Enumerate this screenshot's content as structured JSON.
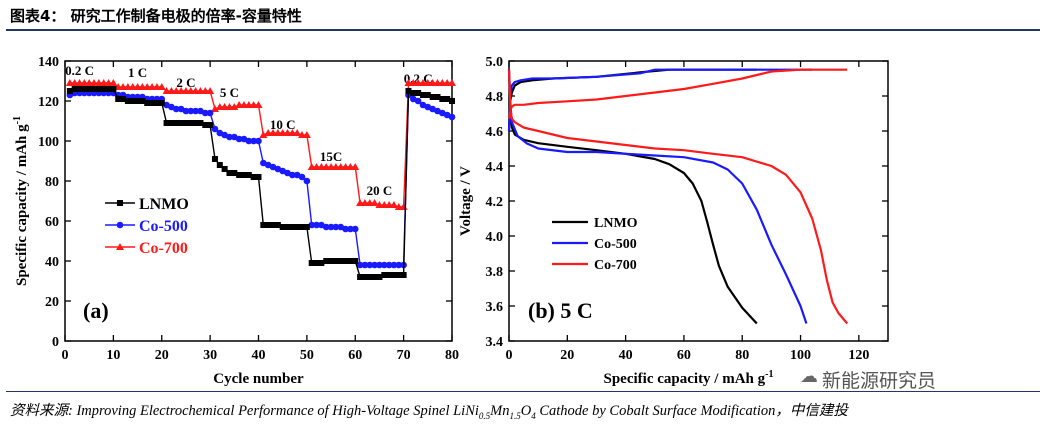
{
  "header": {
    "title": "图表4：  研究工作制备电极的倍率-容量特性"
  },
  "footer": {
    "source_prefix": "资料来源: ",
    "source_title": "Improving Electrochemical Performance of High-Voltage Spinel LiNi",
    "sub1": "0.5",
    "mn": "Mn",
    "sub2": "1.5",
    "tail": "O",
    "sub3": "4",
    "source_rest": " Cathode by Cobalt Surface Modification，中信建投",
    "watermark": "新能源研究员",
    "watermark_icon": "wechat-icon"
  },
  "colors": {
    "LNMO": "#000000",
    "Co-500": "#1a1aff",
    "Co-700": "#ff1a1a",
    "rule": "#1f3864"
  },
  "chart_data": [
    {
      "type": "line",
      "panel_label": "(a)",
      "xlabel": "Cycle number",
      "ylabel": "Specific capacity / mAh g",
      "ylabel_sup": "-1",
      "xlim": [
        0,
        80
      ],
      "ylim": [
        0,
        140
      ],
      "xticks": [
        0,
        10,
        20,
        30,
        40,
        50,
        60,
        70,
        80
      ],
      "yticks": [
        0,
        20,
        40,
        60,
        80,
        100,
        120,
        140
      ],
      "grid": false,
      "legend_position": "left-middle",
      "rate_labels": [
        {
          "text": "0.2 C",
          "x": 3,
          "y": 133
        },
        {
          "text": "1 C",
          "x": 15,
          "y": 132
        },
        {
          "text": "2 C",
          "x": 25,
          "y": 127
        },
        {
          "text": "5 C",
          "x": 34,
          "y": 122
        },
        {
          "text": "10 C",
          "x": 45,
          "y": 106
        },
        {
          "text": "15C",
          "x": 55,
          "y": 90
        },
        {
          "text": "20 C",
          "x": 65,
          "y": 73
        },
        {
          "text": "0.2 C",
          "x": 73,
          "y": 129
        }
      ],
      "series": [
        {
          "name": "LNMO",
          "marker": "square",
          "x": [
            1,
            2,
            3,
            4,
            5,
            6,
            7,
            8,
            9,
            10,
            11,
            12,
            13,
            14,
            15,
            16,
            17,
            18,
            19,
            20,
            21,
            22,
            23,
            24,
            25,
            26,
            27,
            28,
            29,
            30,
            31,
            32,
            33,
            34,
            35,
            36,
            37,
            38,
            39,
            40,
            41,
            42,
            43,
            44,
            45,
            46,
            47,
            48,
            49,
            50,
            51,
            52,
            53,
            54,
            55,
            56,
            57,
            58,
            59,
            60,
            61,
            62,
            63,
            64,
            65,
            66,
            67,
            68,
            69,
            70,
            71,
            72,
            73,
            74,
            75,
            76,
            77,
            78,
            79,
            80
          ],
          "y": [
            125,
            126,
            126,
            126,
            126,
            126,
            126,
            126,
            126,
            126,
            121,
            121,
            120,
            120,
            120,
            120,
            119,
            119,
            119,
            119,
            109,
            109,
            109,
            109,
            109,
            109,
            109,
            109,
            108,
            108,
            91,
            88,
            86,
            84,
            84,
            83,
            83,
            83,
            82,
            82,
            58,
            58,
            58,
            58,
            57,
            57,
            57,
            57,
            57,
            57,
            39,
            39,
            39,
            40,
            40,
            40,
            40,
            40,
            40,
            40,
            32,
            32,
            32,
            32,
            32,
            33,
            33,
            33,
            33,
            33,
            125,
            124,
            124,
            123,
            123,
            122,
            122,
            121,
            121,
            120
          ]
        },
        {
          "name": "Co-500",
          "marker": "circle",
          "x": [
            1,
            2,
            3,
            4,
            5,
            6,
            7,
            8,
            9,
            10,
            11,
            12,
            13,
            14,
            15,
            16,
            17,
            18,
            19,
            20,
            21,
            22,
            23,
            24,
            25,
            26,
            27,
            28,
            29,
            30,
            31,
            32,
            33,
            34,
            35,
            36,
            37,
            38,
            39,
            40,
            41,
            42,
            43,
            44,
            45,
            46,
            47,
            48,
            49,
            50,
            51,
            52,
            53,
            54,
            55,
            56,
            57,
            58,
            59,
            60,
            61,
            62,
            63,
            64,
            65,
            66,
            67,
            68,
            69,
            70,
            71,
            72,
            73,
            74,
            75,
            76,
            77,
            78,
            79,
            80
          ],
          "y": [
            123,
            124,
            124,
            124,
            124,
            124,
            124,
            124,
            124,
            124,
            123,
            123,
            122,
            122,
            122,
            122,
            121,
            121,
            121,
            121,
            118,
            117,
            116,
            116,
            115,
            115,
            115,
            115,
            114,
            114,
            106,
            104,
            103,
            102,
            102,
            101,
            101,
            100,
            100,
            100,
            89,
            88,
            87,
            86,
            85,
            84,
            83,
            83,
            82,
            80,
            58,
            58,
            58,
            57,
            57,
            57,
            57,
            56,
            56,
            56,
            38,
            38,
            38,
            38,
            38,
            38,
            38,
            38,
            38,
            38,
            123,
            121,
            120,
            118,
            117,
            116,
            115,
            114,
            113,
            112
          ]
        },
        {
          "name": "Co-700",
          "marker": "triangle",
          "x": [
            1,
            2,
            3,
            4,
            5,
            6,
            7,
            8,
            9,
            10,
            11,
            12,
            13,
            14,
            15,
            16,
            17,
            18,
            19,
            20,
            21,
            22,
            23,
            24,
            25,
            26,
            27,
            28,
            29,
            30,
            31,
            32,
            33,
            34,
            35,
            36,
            37,
            38,
            39,
            40,
            41,
            42,
            43,
            44,
            45,
            46,
            47,
            48,
            49,
            50,
            51,
            52,
            53,
            54,
            55,
            56,
            57,
            58,
            59,
            60,
            61,
            62,
            63,
            64,
            65,
            66,
            67,
            68,
            69,
            70,
            71,
            72,
            73,
            74,
            75,
            76,
            77,
            78,
            79,
            80
          ],
          "y": [
            129,
            129,
            129,
            129,
            129,
            129,
            129,
            129,
            129,
            129,
            127,
            127,
            127,
            127,
            127,
            127,
            127,
            127,
            127,
            127,
            125,
            125,
            125,
            125,
            125,
            125,
            125,
            125,
            125,
            125,
            116,
            117,
            117,
            117,
            117,
            118,
            118,
            118,
            118,
            118,
            103,
            104,
            104,
            104,
            104,
            104,
            104,
            104,
            103,
            103,
            87,
            87,
            87,
            87,
            87,
            87,
            87,
            87,
            87,
            87,
            69,
            69,
            69,
            69,
            68,
            68,
            68,
            68,
            67,
            67,
            129,
            129,
            129,
            129,
            129,
            129,
            129,
            129,
            129,
            129
          ]
        }
      ]
    },
    {
      "type": "line",
      "panel_label": "(b) 5 C",
      "xlabel": "Specific capacity / mAh g",
      "xlabel_sup": "-1",
      "ylabel": "Voltage / V",
      "xlim": [
        0,
        130
      ],
      "ylim": [
        3.4,
        5.0
      ],
      "xticks": [
        0,
        20,
        40,
        60,
        80,
        100,
        120
      ],
      "yticks": [
        3.4,
        3.6,
        3.8,
        4.0,
        4.2,
        4.4,
        4.6,
        4.8,
        5.0
      ],
      "grid": false,
      "legend_position": "lower-left",
      "series": [
        {
          "name": "LNMO",
          "charge": {
            "x": [
              0,
              0.3,
              1,
              2,
              4,
              8,
              15,
              30,
              48,
              55,
              65,
              75,
              85
            ],
            "y": [
              4.6,
              4.76,
              4.82,
              4.86,
              4.88,
              4.89,
              4.9,
              4.91,
              4.94,
              4.95,
              4.95,
              4.95,
              4.95
            ]
          },
          "discharge": {
            "x": [
              0,
              0.5,
              1,
              2,
              5,
              10,
              20,
              30,
              40,
              50,
              55,
              60,
              63,
              66,
              68,
              70,
              72,
              75,
              80,
              85
            ],
            "y": [
              4.95,
              4.72,
              4.62,
              4.58,
              4.55,
              4.53,
              4.51,
              4.49,
              4.47,
              4.44,
              4.41,
              4.36,
              4.3,
              4.2,
              4.08,
              3.95,
              3.83,
              3.71,
              3.59,
              3.5
            ]
          }
        },
        {
          "name": "Co-500",
          "charge": {
            "x": [
              0,
              0.5,
              1,
              2,
              4,
              8,
              15,
              30,
              45,
              50,
              60,
              80,
              104
            ],
            "y": [
              4.6,
              4.8,
              4.86,
              4.88,
              4.89,
              4.9,
              4.9,
              4.91,
              4.93,
              4.95,
              4.95,
              4.95,
              4.95
            ]
          },
          "discharge": {
            "x": [
              0,
              0.5,
              1,
              3,
              6,
              10,
              20,
              30,
              40,
              50,
              60,
              70,
              75,
              80,
              85,
              90,
              95,
              100,
              102
            ],
            "y": [
              4.95,
              4.75,
              4.65,
              4.57,
              4.53,
              4.5,
              4.48,
              4.48,
              4.47,
              4.46,
              4.45,
              4.42,
              4.38,
              4.3,
              4.15,
              3.95,
              3.78,
              3.6,
              3.5
            ]
          }
        },
        {
          "name": "Co-700",
          "charge": {
            "x": [
              0,
              0.5,
              1,
              2,
              5,
              10,
              20,
              30,
              40,
              50,
              60,
              70,
              80,
              85,
              90,
              100,
              110,
              116
            ],
            "y": [
              4.67,
              4.72,
              4.74,
              4.75,
              4.75,
              4.76,
              4.77,
              4.78,
              4.8,
              4.82,
              4.84,
              4.87,
              4.9,
              4.92,
              4.94,
              4.95,
              4.95,
              4.95
            ]
          },
          "discharge": {
            "x": [
              0,
              0.5,
              1,
              2,
              5,
              10,
              20,
              30,
              40,
              50,
              60,
              70,
              80,
              90,
              95,
              100,
              104,
              107,
              109,
              111,
              113,
              116
            ],
            "y": [
              4.95,
              4.72,
              4.67,
              4.65,
              4.62,
              4.6,
              4.56,
              4.54,
              4.52,
              4.5,
              4.49,
              4.47,
              4.45,
              4.4,
              4.35,
              4.25,
              4.1,
              3.92,
              3.75,
              3.62,
              3.56,
              3.5
            ]
          }
        }
      ]
    }
  ]
}
